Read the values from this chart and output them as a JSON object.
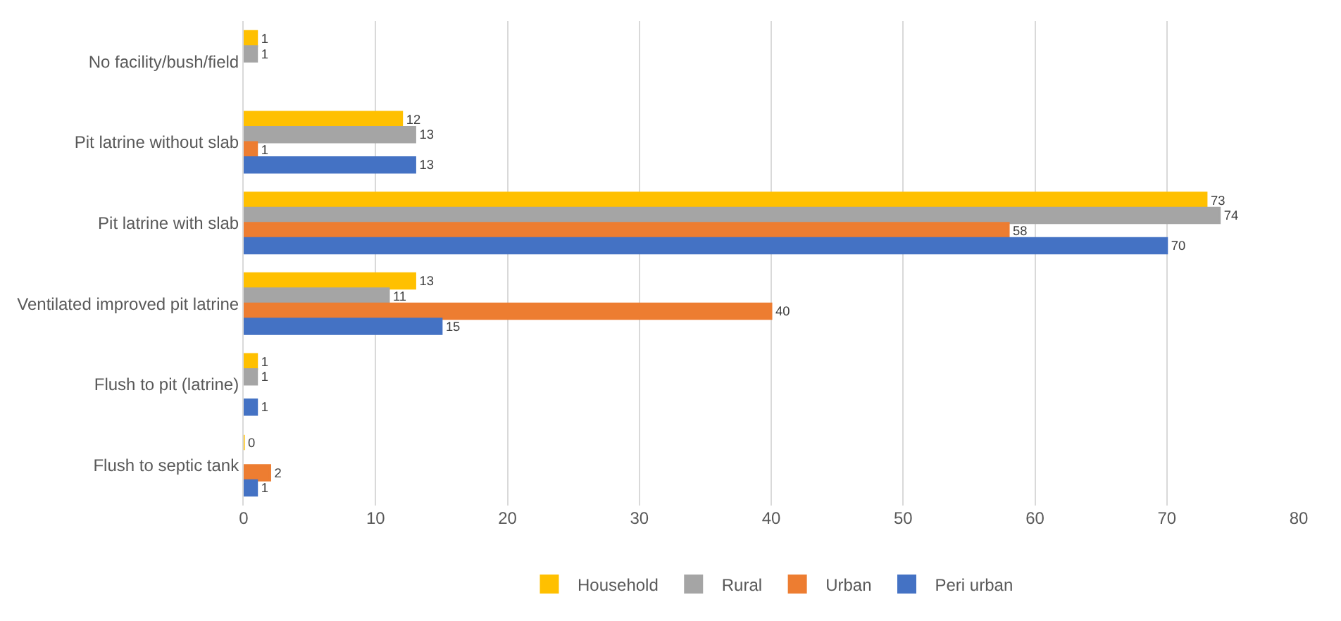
{
  "chart_data": {
    "type": "bar",
    "orientation": "horizontal",
    "categories": [
      "No facility/bush/field",
      "Pit latrine without slab",
      "Pit latrine with slab",
      "Ventilated improved pit latrine",
      "Flush to pit (latrine)",
      "Flush to septic tank"
    ],
    "series": [
      {
        "name": "Household",
        "color": "#ffc000",
        "values": [
          1,
          12,
          73,
          13,
          1,
          0
        ]
      },
      {
        "name": "Rural",
        "color": "#a5a5a5",
        "values": [
          1,
          13,
          74,
          11,
          1,
          null
        ]
      },
      {
        "name": "Urban",
        "color": "#ed7d31",
        "values": [
          null,
          1,
          58,
          40,
          null,
          2
        ]
      },
      {
        "name": "Peri urban",
        "color": "#4472c4",
        "values": [
          null,
          13,
          70,
          15,
          1,
          1
        ]
      }
    ],
    "xlim": [
      0,
      80
    ],
    "xticks": [
      0,
      10,
      20,
      30,
      40,
      50,
      60,
      70,
      80
    ],
    "grid": "x",
    "legend": "bottom",
    "data_labels": true
  }
}
